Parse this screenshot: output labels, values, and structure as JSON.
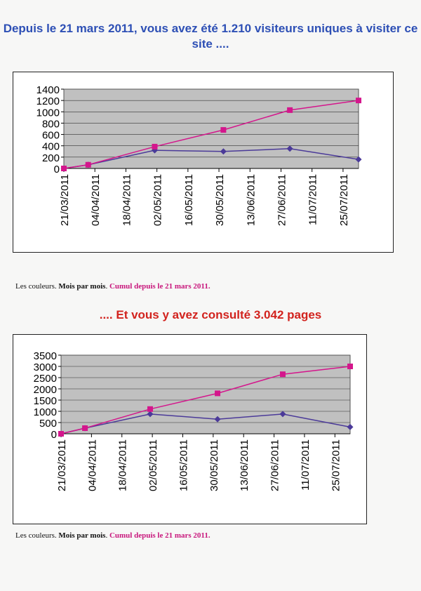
{
  "titles": {
    "top": "Depuis le 21 mars 2011, vous avez été 1.210 visiteurs uniques à visiter ce site ....",
    "bottom": ".... Et vous y avez consulté 3.042 pages"
  },
  "caption": {
    "part1": "Les couleurs.",
    "part2": "Mois par mois",
    "sep": ".",
    "part3": "Cumul depuis le 21 mars 2011."
  },
  "colors": {
    "cumul": "#d4168c",
    "monthly": "#4b3a99",
    "plot_bg": "#c0c0c0",
    "title_blue": "#2d4fb5",
    "title_red": "#d2231e"
  },
  "chart_data": [
    {
      "type": "line",
      "categories": [
        "21/03/2011",
        "04/04/2011",
        "18/04/2011",
        "02/05/2011",
        "16/05/2011",
        "30/05/2011",
        "13/06/2011",
        "27/06/2011",
        "11/07/2011",
        "25/07/2011"
      ],
      "x_range": [
        "2011-03-21",
        "2011-08-01"
      ],
      "ylim": [
        0,
        1400
      ],
      "yticks": [
        0,
        200,
        400,
        600,
        800,
        1000,
        1200,
        1400
      ],
      "grid": true,
      "series": [
        {
          "key": "monthly",
          "marker": "diamond",
          "x": [
            "2011-03-21",
            "2011-04-01",
            "2011-05-01",
            "2011-06-01",
            "2011-07-01",
            "2011-08-01"
          ],
          "y": [
            0,
            65,
            320,
            300,
            350,
            160
          ]
        },
        {
          "key": "cumul",
          "marker": "square",
          "x": [
            "2011-03-21",
            "2011-04-01",
            "2011-05-01",
            "2011-06-01",
            "2011-07-01",
            "2011-08-01"
          ],
          "y": [
            0,
            65,
            385,
            680,
            1030,
            1200
          ]
        }
      ]
    },
    {
      "type": "line",
      "categories": [
        "21/03/2011",
        "04/04/2011",
        "18/04/2011",
        "02/05/2011",
        "16/05/2011",
        "30/05/2011",
        "13/06/2011",
        "27/06/2011",
        "11/07/2011",
        "25/07/2011"
      ],
      "x_range": [
        "2011-03-21",
        "2011-08-01"
      ],
      "ylim": [
        0,
        3500
      ],
      "yticks": [
        0,
        500,
        1000,
        1500,
        2000,
        2500,
        3000,
        3500
      ],
      "grid": true,
      "series": [
        {
          "key": "monthly",
          "marker": "diamond",
          "x": [
            "2011-03-21",
            "2011-04-01",
            "2011-05-01",
            "2011-06-01",
            "2011-07-01",
            "2011-08-01"
          ],
          "y": [
            0,
            250,
            880,
            650,
            880,
            300
          ]
        },
        {
          "key": "cumul",
          "marker": "square",
          "x": [
            "2011-03-21",
            "2011-04-01",
            "2011-05-01",
            "2011-06-01",
            "2011-07-01",
            "2011-08-01"
          ],
          "y": [
            0,
            250,
            1100,
            1800,
            2650,
            3000
          ]
        }
      ]
    }
  ]
}
